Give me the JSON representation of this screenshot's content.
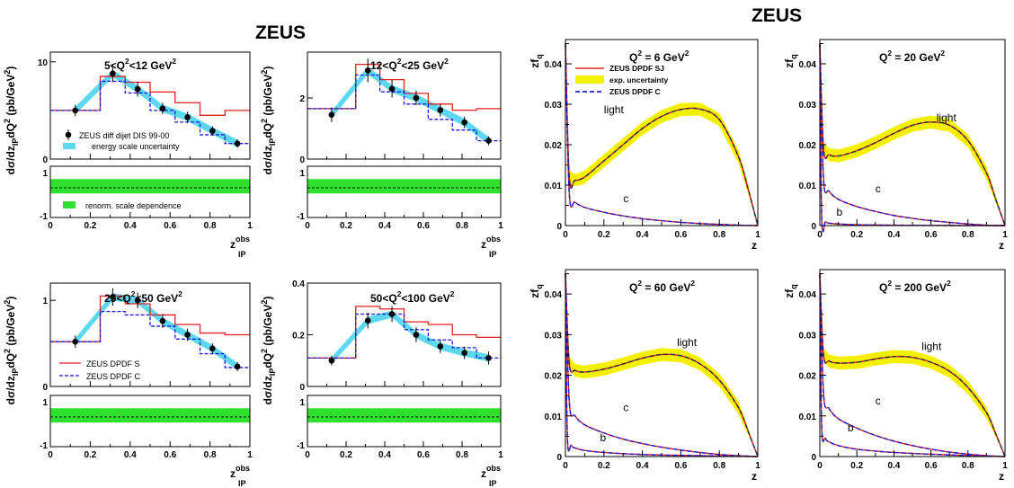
{
  "left": {
    "title": "ZEUS",
    "ylabel_top": "dσ/dz_IPdQ² (pb/GeV²)",
    "ylabel_top_parts": {
      "a": "dσ/dz",
      "b": "IP",
      "c": "dQ",
      "d": "2",
      "e": " (pb/GeV",
      "f": "2",
      "g": ")"
    },
    "xlabel_parts": {
      "z": "z",
      "sup": "obs",
      "sub": "IP"
    },
    "ratio_ticks": [
      "1",
      "-1"
    ],
    "xticks": [
      "0",
      "0.2",
      "0.4",
      "0.6",
      "0.8",
      "1"
    ],
    "legend_data": "ZEUS diff dijet DIS 99-00",
    "legend_band": "energy scale uncertainty",
    "legend_renorm": "renorm. scale dependence",
    "legend_s": "ZEUS DPDF S",
    "legend_c": "ZEUS DPDF C",
    "panel_labels": [
      {
        "pre": "5<Q",
        "sup": "2",
        "post": "<12 GeV",
        "sup2": "2"
      },
      {
        "pre": "12<Q",
        "sup": "2",
        "post": "<25 GeV",
        "sup2": "2"
      },
      {
        "pre": "25<Q",
        "sup": "2",
        "post": "<50 GeV",
        "sup2": "2"
      },
      {
        "pre": "50<Q",
        "sup": "2",
        "post": "<100 GeV",
        "sup2": "2"
      }
    ]
  },
  "right": {
    "title": "ZEUS",
    "ylabel": {
      "main": "zf",
      "sub": "q"
    },
    "xlabel": "z",
    "legend_sj": "ZEUS DPDF SJ",
    "legend_unc": "exp. uncertainty",
    "legend_c": "ZEUS DPDF C",
    "curve_labels": {
      "light": "light",
      "c": "c",
      "b": "b"
    },
    "yticks": [
      "0",
      "0.01",
      "0.02",
      "0.03",
      "0.04"
    ],
    "xticks": [
      "0",
      "0.2",
      "0.4",
      "0.6",
      "0.8",
      "1"
    ],
    "panel_labels": [
      {
        "pre": "Q",
        "sup": "2",
        "post": " = 6 GeV",
        "sup2": "2"
      },
      {
        "pre": "Q",
        "sup": "2",
        "post": " = 20 GeV",
        "sup2": "2"
      },
      {
        "pre": "Q",
        "sup": "2",
        "post": " = 60 GeV",
        "sup2": "2"
      },
      {
        "pre": "Q",
        "sup": "2",
        "post": " = 200 GeV",
        "sup2": "2"
      }
    ]
  },
  "colors": {
    "band": "#5dd8f0",
    "green": "#2fe02f",
    "red": "#e02020",
    "blue": "#1a1ad8",
    "yellow": "#f5f000",
    "dark": "#1a2b5a"
  },
  "chart_data": [
    {
      "type": "line",
      "panel": "5<Q^2<12 GeV^2",
      "xlim": [
        0,
        1
      ],
      "ylim": [
        0,
        11
      ],
      "yticks": [
        0,
        10
      ],
      "x": [
        0.125,
        0.3125,
        0.4375,
        0.5625,
        0.6875,
        0.8125,
        0.9375
      ],
      "series": [
        {
          "name": "ZEUS diff dijet DIS 99-00",
          "values": [
            5.0,
            8.8,
            7.2,
            5.2,
            4.3,
            2.9,
            1.6
          ],
          "errors": [
            0.3,
            0.6,
            0.5,
            0.3,
            0.3,
            0.2,
            0.15
          ]
        },
        {
          "name": "ZEUS DPDF S",
          "values": [
            5.0,
            8.5,
            7.9,
            6.9,
            5.8,
            4.5,
            5.0
          ]
        },
        {
          "name": "ZEUS DPDF C",
          "values": [
            5.0,
            8.0,
            6.8,
            5.0,
            3.8,
            2.5,
            1.6
          ]
        }
      ]
    },
    {
      "type": "line",
      "panel": "12<Q^2<25 GeV^2",
      "xlim": [
        0,
        1
      ],
      "ylim": [
        0,
        3.5
      ],
      "yticks": [
        0,
        2
      ],
      "x": [
        0.125,
        0.3125,
        0.4375,
        0.5625,
        0.6875,
        0.8125,
        0.9375
      ],
      "series": [
        {
          "name": "ZEUS diff dijet DIS 99-00",
          "values": [
            1.45,
            2.9,
            2.3,
            2.0,
            1.6,
            1.2,
            0.6
          ],
          "errors": [
            0.15,
            0.3,
            0.2,
            0.15,
            0.12,
            0.1,
            0.06
          ]
        },
        {
          "name": "ZEUS DPDF S",
          "values": [
            1.65,
            3.1,
            2.6,
            2.15,
            1.8,
            1.6,
            1.65
          ]
        },
        {
          "name": "ZEUS DPDF C",
          "values": [
            1.65,
            2.75,
            2.2,
            1.8,
            1.3,
            0.95,
            0.6
          ]
        }
      ]
    },
    {
      "type": "line",
      "panel": "25<Q^2<50 GeV^2",
      "xlim": [
        0,
        1
      ],
      "ylim": [
        0,
        1.2
      ],
      "yticks": [
        0,
        1
      ],
      "x": [
        0.125,
        0.3125,
        0.4375,
        0.5625,
        0.6875,
        0.8125,
        0.9375
      ],
      "series": [
        {
          "name": "ZEUS diff dijet DIS 99-00",
          "values": [
            0.52,
            1.04,
            1.0,
            0.76,
            0.6,
            0.44,
            0.23
          ],
          "errors": [
            0.04,
            0.07,
            0.06,
            0.05,
            0.04,
            0.03,
            0.02
          ]
        },
        {
          "name": "ZEUS DPDF S",
          "values": [
            0.52,
            1.05,
            0.96,
            0.83,
            0.72,
            0.62,
            0.6
          ]
        },
        {
          "name": "ZEUS DPDF C",
          "values": [
            0.52,
            0.87,
            0.83,
            0.7,
            0.55,
            0.38,
            0.22
          ]
        }
      ]
    },
    {
      "type": "line",
      "panel": "50<Q^2<100 GeV^2",
      "xlim": [
        0,
        1
      ],
      "ylim": [
        0,
        0.4
      ],
      "yticks": [
        0,
        0.2,
        0.4
      ],
      "x": [
        0.125,
        0.3125,
        0.4375,
        0.5625,
        0.6875,
        0.8125,
        0.9375
      ],
      "series": [
        {
          "name": "ZEUS diff dijet DIS 99-00",
          "values": [
            0.1,
            0.255,
            0.28,
            0.2,
            0.155,
            0.13,
            0.11
          ],
          "errors": [
            0.008,
            0.02,
            0.02,
            0.018,
            0.015,
            0.014,
            0.015
          ]
        },
        {
          "name": "ZEUS DPDF S",
          "values": [
            0.11,
            0.31,
            0.3,
            0.25,
            0.24,
            0.2,
            0.19
          ]
        },
        {
          "name": "ZEUS DPDF C",
          "values": [
            0.11,
            0.28,
            0.28,
            0.22,
            0.18,
            0.15,
            0.11
          ]
        }
      ]
    },
    {
      "type": "area",
      "panel": "Q^2 = 6 GeV^2",
      "xlim": [
        0,
        1
      ],
      "ylim": [
        0,
        0.046
      ],
      "series": [
        {
          "name": "light",
          "x": [
            0.0,
            0.02,
            0.05,
            0.1,
            0.2,
            0.3,
            0.4,
            0.5,
            0.6,
            0.7,
            0.8,
            0.9,
            0.95,
            1.0
          ],
          "values": [
            0.045,
            0.012,
            0.0112,
            0.012,
            0.016,
            0.02,
            0.024,
            0.027,
            0.0287,
            0.0288,
            0.0262,
            0.017,
            0.009,
            0.0
          ]
        },
        {
          "name": "c",
          "x": [
            0.0,
            0.02,
            0.05,
            0.1,
            0.2,
            0.3,
            0.4,
            0.5,
            0.6,
            0.7,
            0.8,
            0.9,
            1.0
          ],
          "values": [
            0.045,
            0.008,
            0.0058,
            0.0045,
            0.0033,
            0.0024,
            0.0017,
            0.0012,
            0.0008,
            0.0005,
            0.0003,
            0.0001,
            0.0
          ]
        }
      ]
    },
    {
      "type": "area",
      "panel": "Q^2 = 20 GeV^2",
      "xlim": [
        0,
        1
      ],
      "ylim": [
        0,
        0.046
      ],
      "series": [
        {
          "name": "light",
          "x": [
            0.0,
            0.02,
            0.05,
            0.1,
            0.2,
            0.3,
            0.4,
            0.5,
            0.6,
            0.7,
            0.8,
            0.9,
            0.95,
            1.0
          ],
          "values": [
            0.045,
            0.019,
            0.0175,
            0.0172,
            0.0185,
            0.0205,
            0.0228,
            0.0248,
            0.0256,
            0.0248,
            0.021,
            0.013,
            0.0065,
            0.0
          ]
        },
        {
          "name": "c",
          "x": [
            0.0,
            0.02,
            0.05,
            0.1,
            0.2,
            0.3,
            0.4,
            0.5,
            0.6,
            0.7,
            0.8,
            0.9,
            1.0
          ],
          "values": [
            0.045,
            0.0115,
            0.0085,
            0.0065,
            0.0047,
            0.0035,
            0.0025,
            0.0018,
            0.0012,
            0.0008,
            0.0004,
            0.0001,
            0.0
          ]
        },
        {
          "name": "b",
          "x": [
            0.0,
            0.01,
            0.03,
            0.05,
            0.1,
            0.2,
            0.4,
            0.7,
            1.0
          ],
          "values": [
            0.045,
            0.002,
            0.0009,
            0.0006,
            0.0004,
            0.0002,
            0.0001,
            3e-05,
            0.0
          ]
        }
      ]
    },
    {
      "type": "area",
      "panel": "Q^2 = 60 GeV^2",
      "xlim": [
        0,
        1
      ],
      "ylim": [
        0,
        0.046
      ],
      "series": [
        {
          "name": "light",
          "x": [
            0.0,
            0.02,
            0.05,
            0.1,
            0.2,
            0.3,
            0.4,
            0.5,
            0.6,
            0.7,
            0.8,
            0.9,
            0.95,
            1.0
          ],
          "values": [
            0.045,
            0.023,
            0.0212,
            0.0208,
            0.0215,
            0.0228,
            0.0242,
            0.0251,
            0.0248,
            0.0228,
            0.0188,
            0.012,
            0.0062,
            0.0
          ]
        },
        {
          "name": "c",
          "x": [
            0.0,
            0.02,
            0.05,
            0.1,
            0.2,
            0.3,
            0.4,
            0.5,
            0.6,
            0.7,
            0.8,
            0.9,
            1.0
          ],
          "values": [
            0.045,
            0.0135,
            0.01,
            0.0078,
            0.0058,
            0.0043,
            0.0032,
            0.0023,
            0.0016,
            0.001,
            0.0005,
            0.0002,
            0.0
          ]
        },
        {
          "name": "b",
          "x": [
            0.0,
            0.01,
            0.03,
            0.05,
            0.1,
            0.2,
            0.4,
            0.7,
            1.0
          ],
          "values": [
            0.045,
            0.005,
            0.0028,
            0.0021,
            0.0015,
            0.001,
            0.0005,
            0.0002,
            0.0
          ]
        }
      ]
    },
    {
      "type": "area",
      "panel": "Q^2 = 200 GeV^2",
      "xlim": [
        0,
        1
      ],
      "ylim": [
        0,
        0.046
      ],
      "series": [
        {
          "name": "light",
          "x": [
            0.0,
            0.02,
            0.05,
            0.1,
            0.2,
            0.3,
            0.4,
            0.5,
            0.6,
            0.7,
            0.8,
            0.9,
            0.95,
            1.0
          ],
          "values": [
            0.045,
            0.025,
            0.0235,
            0.023,
            0.0232,
            0.024,
            0.0246,
            0.0244,
            0.0232,
            0.021,
            0.017,
            0.0108,
            0.0056,
            0.0
          ]
        },
        {
          "name": "c",
          "x": [
            0.0,
            0.02,
            0.05,
            0.1,
            0.2,
            0.3,
            0.4,
            0.5,
            0.6,
            0.7,
            0.8,
            0.9,
            1.0
          ],
          "values": [
            0.045,
            0.0155,
            0.0118,
            0.0093,
            0.007,
            0.0052,
            0.0038,
            0.0027,
            0.0018,
            0.0011,
            0.0006,
            0.0002,
            0.0
          ]
        },
        {
          "name": "b",
          "x": [
            0.0,
            0.01,
            0.03,
            0.05,
            0.1,
            0.2,
            0.4,
            0.7,
            1.0
          ],
          "values": [
            0.045,
            0.0075,
            0.0045,
            0.0036,
            0.0027,
            0.0018,
            0.001,
            0.0004,
            0.0
          ]
        }
      ]
    }
  ]
}
